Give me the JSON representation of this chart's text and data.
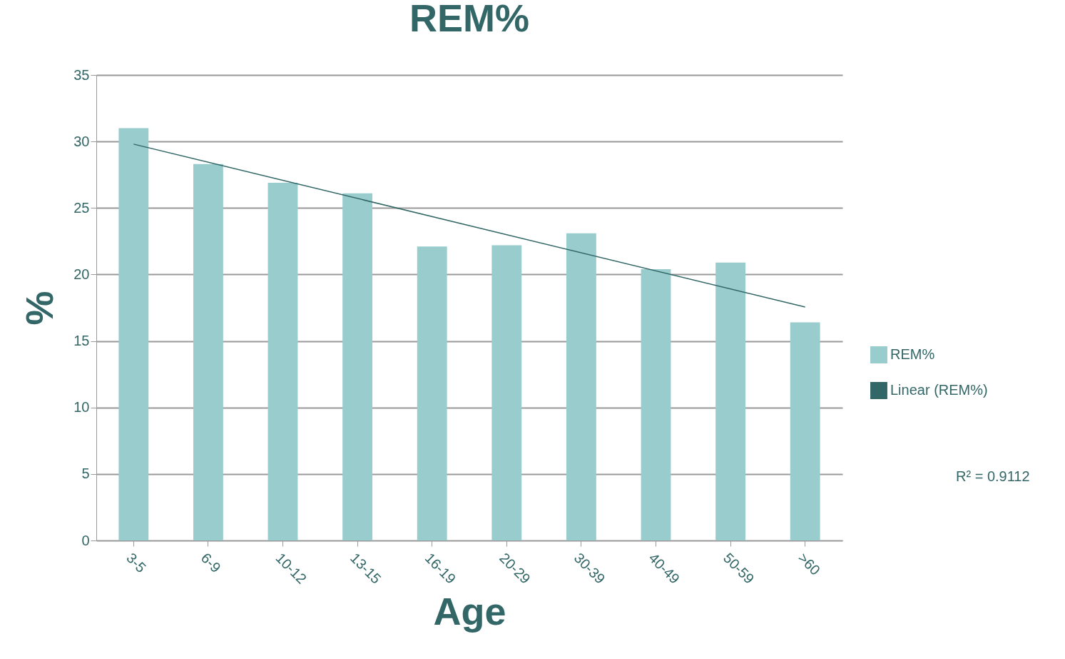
{
  "chart_data": {
    "type": "bar",
    "title": "REM%",
    "xlabel": "Age",
    "ylabel": "%",
    "categories": [
      "3-5",
      "6-9",
      "10-12",
      "13-15",
      "16-19",
      "20-29",
      "30-39",
      "40-49",
      "50-59",
      ">60"
    ],
    "series": [
      {
        "name": "REM%",
        "color": "#99cccc",
        "values": [
          31.0,
          28.3,
          26.9,
          26.1,
          22.1,
          22.2,
          23.1,
          20.4,
          20.9,
          16.4
        ]
      },
      {
        "name": "Linear (REM%)",
        "type": "line",
        "color": "#336666",
        "x": [
          "3-5",
          ">60"
        ],
        "values": [
          29.8,
          17.55
        ]
      }
    ],
    "ylim": [
      0,
      35
    ],
    "yticks": [
      0,
      5,
      10,
      15,
      20,
      25,
      30,
      35
    ],
    "grid": "y",
    "legend": "right",
    "annotations": [
      "R² = 0.9112"
    ]
  }
}
